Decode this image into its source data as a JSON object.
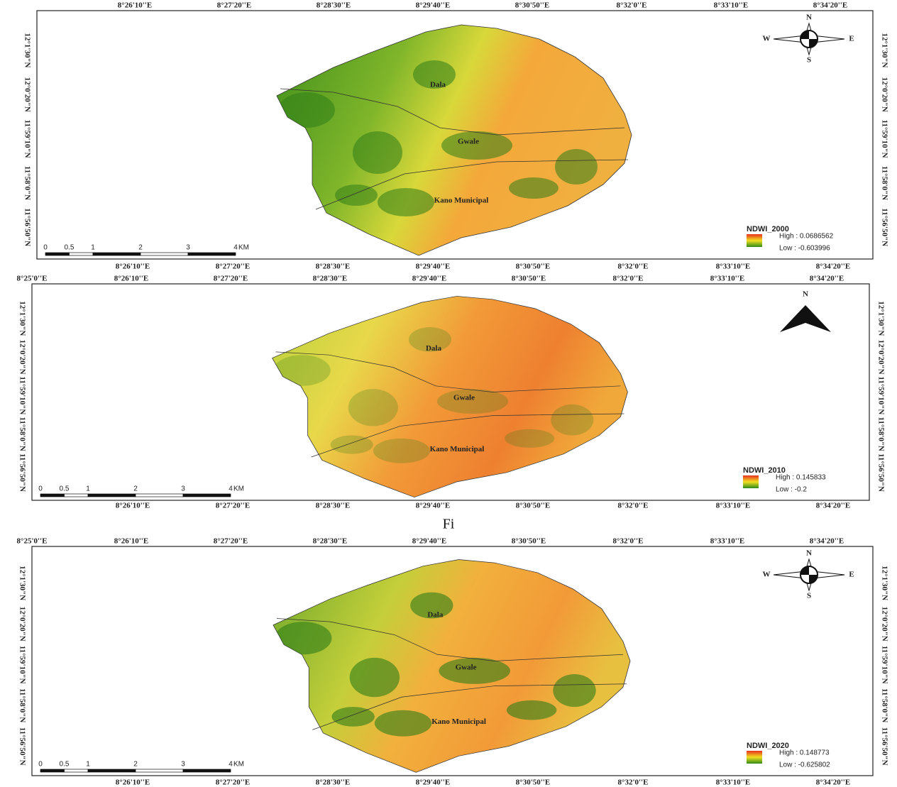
{
  "panels": [
    {
      "top_ticks": [
        "8°26'10''E",
        "8°27'20''E",
        "8°28'30''E",
        "8°29'40''E",
        "8°30'50''E",
        "8°32'0''E",
        "8°33'10''E",
        "8°34'20''E"
      ],
      "bottom_ticks": [
        "8°26'10''E",
        "8°27'20''E",
        "8°28'30''E",
        "8°29'40''E",
        "8°30'50''E",
        "8°32'0''E",
        "8°33'10''E",
        "8°34'20''E"
      ],
      "left_ticks": [
        "12°1'30\"N",
        "12°0'20\"N",
        "11°59'10\"N",
        "11°58'0\"N",
        "11°56'50\"N"
      ],
      "right_ticks": [
        "12°1'30\"N",
        "12°0'20\"N",
        "11°59'10\"N",
        "11°58'0\"N",
        "11°56'50\"N"
      ],
      "places": [
        "Dala",
        "Gwale",
        "Kano Municipal"
      ],
      "legend": {
        "title": "NDWI_2000",
        "high": "High : 0.0686562",
        "low": "Low : -0.603996"
      },
      "scale": [
        "0",
        "0.5",
        "1",
        "2",
        "3",
        "4",
        "KM"
      ],
      "compass": [
        "N",
        "W",
        "E",
        "S"
      ]
    },
    {
      "top_ticks": [
        "8°25'0''E",
        "8°26'10''E",
        "8°27'20''E",
        "8°28'30''E",
        "8°29'40''E",
        "8°30'50''E",
        "8°32'0''E",
        "8°33'10''E",
        "8°34'20''E"
      ],
      "bottom_ticks": [
        "8°26'10''E",
        "8°27'20''E",
        "8°28'30''E",
        "8°29'40''E",
        "8°30'50''E",
        "8°32'0''E",
        "8°33'10''E",
        "8°34'20''E"
      ],
      "left_ticks": [
        "12°1'30\"N",
        "12°0'20\"N",
        "11°59'10\"N",
        "11°58'0\"N",
        "11°56'50\"N"
      ],
      "right_ticks": [
        "12°1'30\"N",
        "12°0'20\"N",
        "11°59'10\"N",
        "11°58'0\"N",
        "11°56'50\"N"
      ],
      "places": [
        "Dala",
        "Gwale",
        "Kano Municipal"
      ],
      "legend": {
        "title": "NDWI_2010",
        "high": "High : 0.145833",
        "low": "Low : -0.2"
      },
      "scale": [
        "0",
        "0.5",
        "1",
        "2",
        "3",
        "4",
        "KM"
      ],
      "compass": [
        "N"
      ]
    },
    {
      "top_ticks": [
        "8°25'0''E",
        "8°26'10''E",
        "8°27'20''E",
        "8°28'30''E",
        "8°29'40''E",
        "8°30'50''E",
        "8°32'0''E",
        "8°33'10''E",
        "8°34'20''E"
      ],
      "bottom_ticks": [
        "8°26'10''E",
        "8°27'20''E",
        "8°28'30''E",
        "8°29'40''E",
        "8°30'50''E",
        "8°32'0''E",
        "8°33'10''E",
        "8°34'20''E"
      ],
      "left_ticks": [
        "12°1'30\"N",
        "12°0'20\"N",
        "11°59'10\"N",
        "11°58'0\"N",
        "11°56'50\"N"
      ],
      "right_ticks": [
        "12°1'30\"N",
        "12°0'20\"N",
        "11°59'10\"N",
        "11°58'0\"N",
        "11°56'50\"N"
      ],
      "places": [
        "Dala",
        "Gwale",
        "Kano Municipal"
      ],
      "legend": {
        "title": "NDWI_2020",
        "high": "High : 0.148773",
        "low": "Low : -0.625802"
      },
      "scale": [
        "0",
        "0.5",
        "1",
        "2",
        "3",
        "4",
        "KM"
      ],
      "compass": [
        "N",
        "W",
        "E",
        "S"
      ]
    }
  ],
  "caption": "Fi"
}
